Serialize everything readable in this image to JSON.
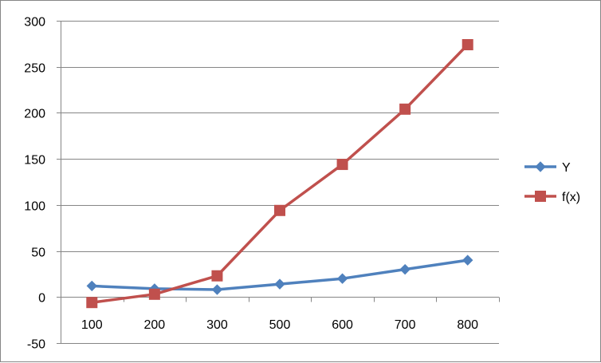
{
  "chart_data": {
    "type": "line",
    "categories": [
      "100",
      "200",
      "300",
      "500",
      "600",
      "700",
      "800"
    ],
    "series": [
      {
        "name": "Y",
        "color": "#4F81BD",
        "marker": "diamond",
        "values": [
          12,
          9,
          8,
          14,
          20,
          30,
          40
        ]
      },
      {
        "name": "f(x)",
        "color": "#C0504D",
        "marker": "square",
        "values": [
          -6,
          3,
          23,
          94,
          144,
          204,
          274
        ]
      }
    ],
    "ylim": [
      -50,
      300
    ],
    "yticks": [
      -50,
      0,
      50,
      100,
      150,
      200,
      250,
      300
    ],
    "grid": true,
    "legend": "right",
    "title": "",
    "xlabel": "",
    "ylabel": ""
  }
}
